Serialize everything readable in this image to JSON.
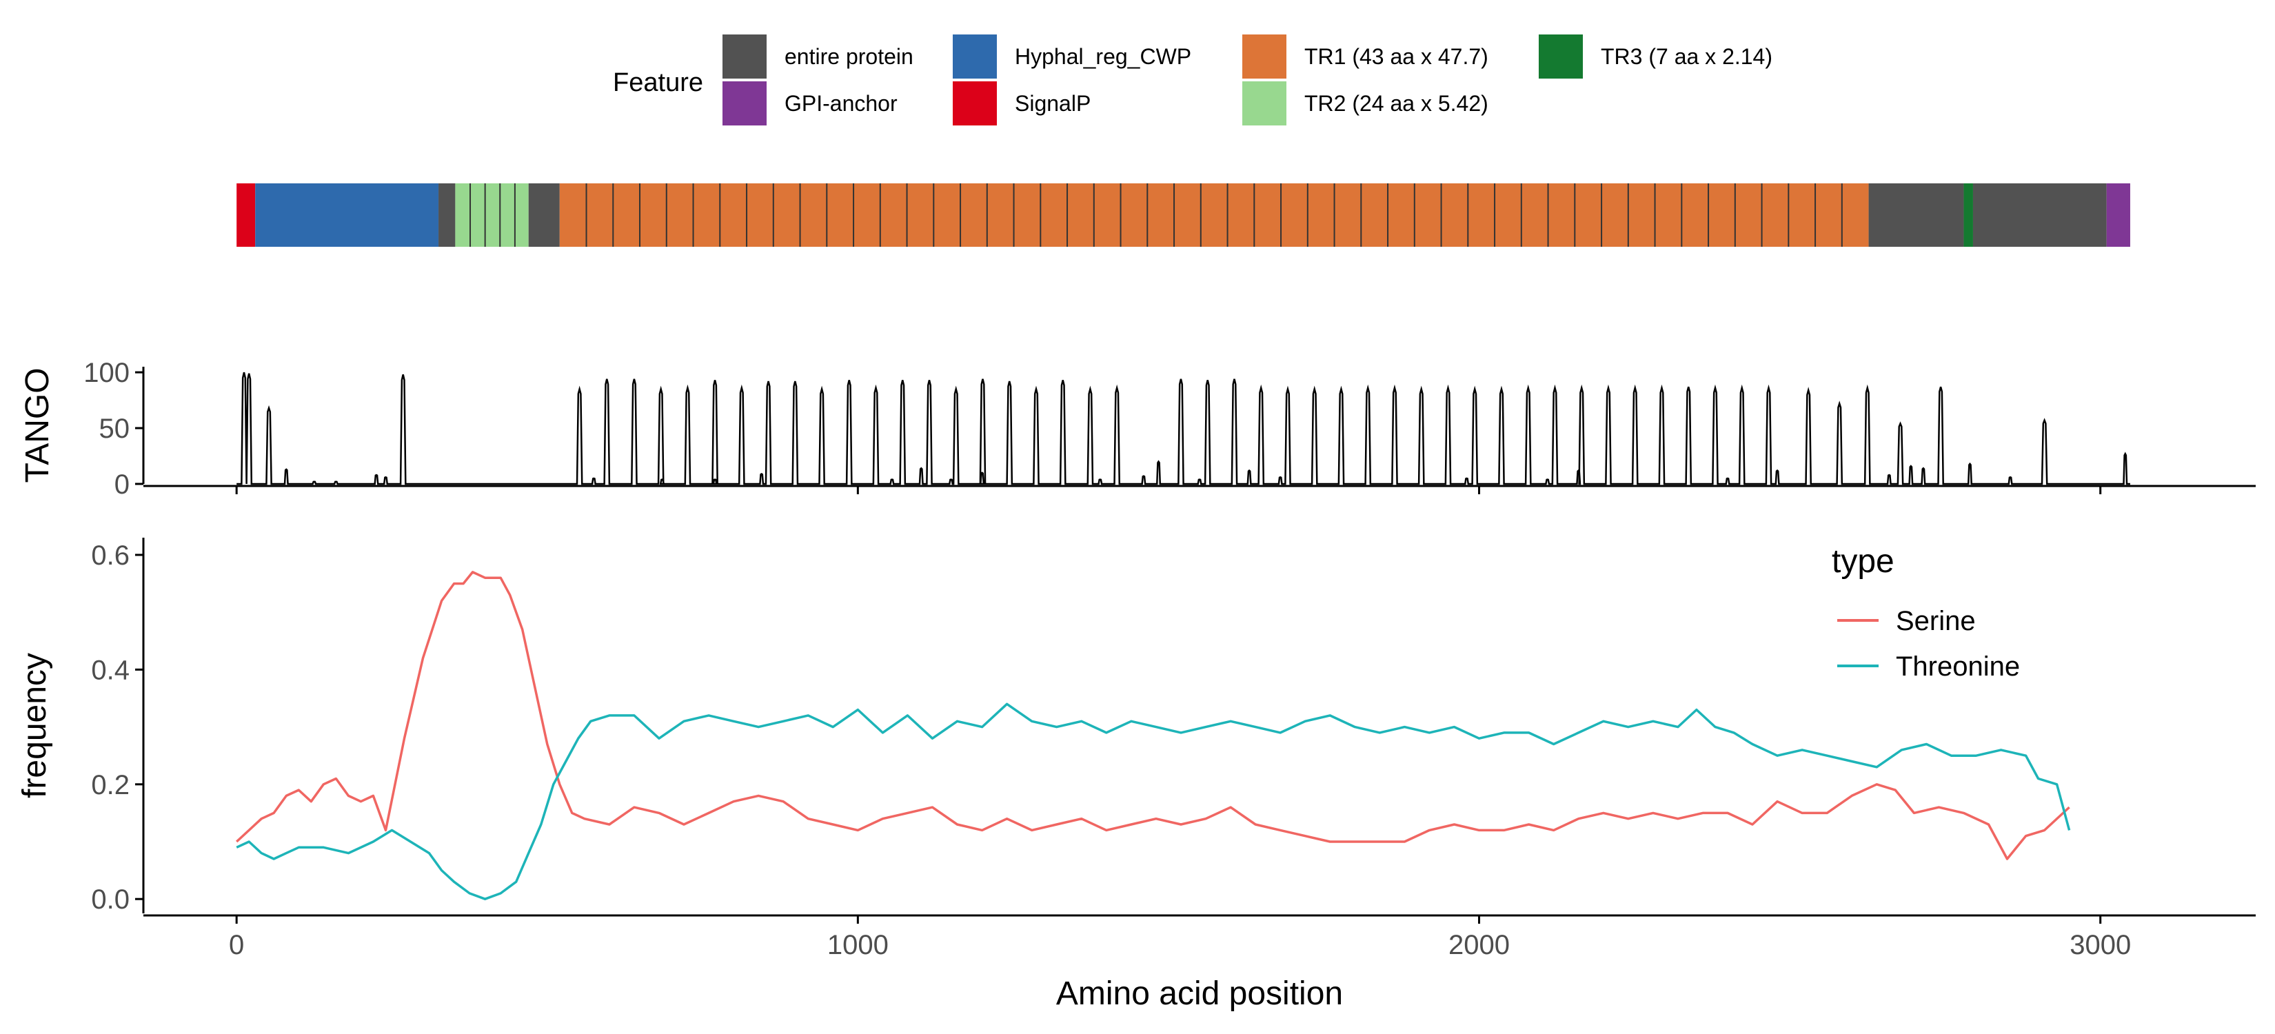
{
  "legend": {
    "title": "Feature",
    "items": [
      {
        "label": "entire protein",
        "color": "#525252"
      },
      {
        "label": "GPI-anchor",
        "color": "#7f3795"
      },
      {
        "label": "Hyphal_reg_CWP",
        "color": "#2e6aad"
      },
      {
        "label": "SignalP",
        "color": "#dc0119"
      },
      {
        "label": "TR1 (43 aa x 47.7)",
        "color": "#dd7537"
      },
      {
        "label": "TR2 (24 aa x 5.42)",
        "color": "#98d88f"
      },
      {
        "label": "TR3 (7 aa x 2.14)",
        "color": "#147a30"
      }
    ]
  },
  "chart_data": [
    {
      "type": "bar",
      "panel": "feature-track",
      "xlim": [
        -150,
        3250
      ],
      "segments": [
        {
          "feature": "SignalP",
          "start": 0,
          "end": 30
        },
        {
          "feature": "Hyphal_reg_CWP",
          "start": 30,
          "end": 325
        },
        {
          "feature": "entire protein",
          "start": 325,
          "end": 352
        },
        {
          "feature": "TR2 (24 aa x 5.42)",
          "start": 352,
          "end": 470,
          "repeat_len": 24
        },
        {
          "feature": "entire protein",
          "start": 470,
          "end": 520
        },
        {
          "feature": "TR1 (43 aa x 47.7)",
          "start": 520,
          "end": 2627,
          "repeat_len": 43
        },
        {
          "feature": "entire protein",
          "start": 2627,
          "end": 2780
        },
        {
          "feature": "TR3 (7 aa x 2.14)",
          "start": 2780,
          "end": 2795
        },
        {
          "feature": "entire protein",
          "start": 2795,
          "end": 3010
        },
        {
          "feature": "GPI-anchor",
          "start": 3010,
          "end": 3048
        }
      ]
    },
    {
      "type": "line",
      "panel": "tango",
      "ylabel": "TANGO",
      "ylim": [
        0,
        105
      ],
      "yticks": [
        0,
        50,
        100
      ],
      "xlim": [
        -150,
        3250
      ],
      "xticks": [
        0,
        1000,
        2000,
        3000
      ],
      "peaks": [
        [
          12,
          100
        ],
        [
          20,
          99
        ],
        [
          52,
          68
        ],
        [
          80,
          13
        ],
        [
          125,
          2
        ],
        [
          160,
          2
        ],
        [
          225,
          8
        ],
        [
          240,
          6
        ],
        [
          268,
          98
        ],
        [
          552,
          85
        ],
        [
          575,
          5
        ],
        [
          596,
          94
        ],
        [
          640,
          94
        ],
        [
          685,
          4
        ],
        [
          683,
          85
        ],
        [
          726,
          86
        ],
        [
          770,
          4
        ],
        [
          770,
          93
        ],
        [
          813,
          86
        ],
        [
          845,
          9
        ],
        [
          856,
          92
        ],
        [
          899,
          92
        ],
        [
          942,
          85
        ],
        [
          986,
          93
        ],
        [
          1029,
          86
        ],
        [
          1055,
          4
        ],
        [
          1072,
          93
        ],
        [
          1102,
          14
        ],
        [
          1115,
          93
        ],
        [
          1150,
          4
        ],
        [
          1158,
          85
        ],
        [
          1200,
          10
        ],
        [
          1201,
          94
        ],
        [
          1244,
          92
        ],
        [
          1287,
          85
        ],
        [
          1330,
          93
        ],
        [
          1374,
          85
        ],
        [
          1390,
          4
        ],
        [
          1417,
          86
        ],
        [
          1460,
          7
        ],
        [
          1484,
          20
        ],
        [
          1520,
          94
        ],
        [
          1550,
          4
        ],
        [
          1563,
          93
        ],
        [
          1606,
          94
        ],
        [
          1630,
          12
        ],
        [
          1649,
          86
        ],
        [
          1680,
          6
        ],
        [
          1692,
          85
        ],
        [
          1735,
          85
        ],
        [
          1778,
          85
        ],
        [
          1821,
          86
        ],
        [
          1864,
          86
        ],
        [
          1907,
          85
        ],
        [
          1950,
          86
        ],
        [
          1980,
          5
        ],
        [
          1993,
          85
        ],
        [
          2036,
          85
        ],
        [
          2079,
          86
        ],
        [
          2110,
          4
        ],
        [
          2122,
          86
        ],
        [
          2160,
          12
        ],
        [
          2165,
          86
        ],
        [
          2208,
          86
        ],
        [
          2251,
          86
        ],
        [
          2294,
          86
        ],
        [
          2337,
          87
        ],
        [
          2380,
          86
        ],
        [
          2400,
          5
        ],
        [
          2423,
          86
        ],
        [
          2466,
          86
        ],
        [
          2480,
          12
        ],
        [
          2530,
          84
        ],
        [
          2580,
          72
        ],
        [
          2625,
          86
        ],
        [
          2660,
          8
        ],
        [
          2678,
          54
        ],
        [
          2695,
          16
        ],
        [
          2715,
          14
        ],
        [
          2743,
          87
        ],
        [
          2790,
          18
        ],
        [
          2855,
          6
        ],
        [
          2910,
          57
        ],
        [
          3040,
          27
        ]
      ]
    },
    {
      "type": "line",
      "panel": "composition",
      "title": "",
      "xlabel": "Amino acid position",
      "ylabel": "frequency",
      "xlim": [
        -150,
        3250
      ],
      "ylim": [
        -0.025,
        0.63
      ],
      "xticks": [
        0,
        1000,
        2000,
        3000
      ],
      "yticks": [
        0.0,
        0.2,
        0.4,
        0.6
      ],
      "legend_title": "type",
      "legend_position": "top-right",
      "series": [
        {
          "name": "Serine",
          "color": "#f06662",
          "points": [
            [
              0,
              0.1
            ],
            [
              20,
              0.12
            ],
            [
              40,
              0.14
            ],
            [
              60,
              0.15
            ],
            [
              80,
              0.18
            ],
            [
              100,
              0.19
            ],
            [
              120,
              0.17
            ],
            [
              140,
              0.2
            ],
            [
              160,
              0.21
            ],
            [
              180,
              0.18
            ],
            [
              200,
              0.17
            ],
            [
              220,
              0.18
            ],
            [
              240,
              0.12
            ],
            [
              270,
              0.28
            ],
            [
              300,
              0.42
            ],
            [
              330,
              0.52
            ],
            [
              350,
              0.55
            ],
            [
              365,
              0.55
            ],
            [
              380,
              0.57
            ],
            [
              400,
              0.56
            ],
            [
              425,
              0.56
            ],
            [
              440,
              0.53
            ],
            [
              460,
              0.47
            ],
            [
              480,
              0.37
            ],
            [
              500,
              0.27
            ],
            [
              520,
              0.2
            ],
            [
              540,
              0.15
            ],
            [
              560,
              0.14
            ],
            [
              600,
              0.13
            ],
            [
              640,
              0.16
            ],
            [
              680,
              0.15
            ],
            [
              720,
              0.13
            ],
            [
              760,
              0.15
            ],
            [
              800,
              0.17
            ],
            [
              840,
              0.18
            ],
            [
              880,
              0.17
            ],
            [
              920,
              0.14
            ],
            [
              960,
              0.13
            ],
            [
              1000,
              0.12
            ],
            [
              1040,
              0.14
            ],
            [
              1080,
              0.15
            ],
            [
              1120,
              0.16
            ],
            [
              1160,
              0.13
            ],
            [
              1200,
              0.12
            ],
            [
              1240,
              0.14
            ],
            [
              1280,
              0.12
            ],
            [
              1320,
              0.13
            ],
            [
              1360,
              0.14
            ],
            [
              1400,
              0.12
            ],
            [
              1440,
              0.13
            ],
            [
              1480,
              0.14
            ],
            [
              1520,
              0.13
            ],
            [
              1560,
              0.14
            ],
            [
              1600,
              0.16
            ],
            [
              1640,
              0.13
            ],
            [
              1680,
              0.12
            ],
            [
              1720,
              0.11
            ],
            [
              1760,
              0.1
            ],
            [
              1800,
              0.1
            ],
            [
              1840,
              0.1
            ],
            [
              1880,
              0.1
            ],
            [
              1920,
              0.12
            ],
            [
              1960,
              0.13
            ],
            [
              2000,
              0.12
            ],
            [
              2040,
              0.12
            ],
            [
              2080,
              0.13
            ],
            [
              2120,
              0.12
            ],
            [
              2160,
              0.14
            ],
            [
              2200,
              0.15
            ],
            [
              2240,
              0.14
            ],
            [
              2280,
              0.15
            ],
            [
              2320,
              0.14
            ],
            [
              2360,
              0.15
            ],
            [
              2400,
              0.15
            ],
            [
              2440,
              0.13
            ],
            [
              2480,
              0.17
            ],
            [
              2520,
              0.15
            ],
            [
              2560,
              0.15
            ],
            [
              2600,
              0.18
            ],
            [
              2640,
              0.2
            ],
            [
              2670,
              0.19
            ],
            [
              2700,
              0.15
            ],
            [
              2740,
              0.16
            ],
            [
              2780,
              0.15
            ],
            [
              2820,
              0.13
            ],
            [
              2850,
              0.07
            ],
            [
              2880,
              0.11
            ],
            [
              2910,
              0.12
            ],
            [
              2950,
              0.16
            ]
          ]
        },
        {
          "name": "Threonine",
          "color": "#1db4b8",
          "points": [
            [
              0,
              0.09
            ],
            [
              20,
              0.1
            ],
            [
              40,
              0.08
            ],
            [
              60,
              0.07
            ],
            [
              80,
              0.08
            ],
            [
              100,
              0.09
            ],
            [
              140,
              0.09
            ],
            [
              180,
              0.08
            ],
            [
              220,
              0.1
            ],
            [
              250,
              0.12
            ],
            [
              280,
              0.1
            ],
            [
              310,
              0.08
            ],
            [
              330,
              0.05
            ],
            [
              350,
              0.03
            ],
            [
              375,
              0.01
            ],
            [
              400,
              0.0
            ],
            [
              425,
              0.01
            ],
            [
              450,
              0.03
            ],
            [
              470,
              0.08
            ],
            [
              490,
              0.13
            ],
            [
              510,
              0.2
            ],
            [
              530,
              0.24
            ],
            [
              550,
              0.28
            ],
            [
              570,
              0.31
            ],
            [
              600,
              0.32
            ],
            [
              640,
              0.32
            ],
            [
              680,
              0.28
            ],
            [
              720,
              0.31
            ],
            [
              760,
              0.32
            ],
            [
              800,
              0.31
            ],
            [
              840,
              0.3
            ],
            [
              880,
              0.31
            ],
            [
              920,
              0.32
            ],
            [
              960,
              0.3
            ],
            [
              1000,
              0.33
            ],
            [
              1040,
              0.29
            ],
            [
              1080,
              0.32
            ],
            [
              1120,
              0.28
            ],
            [
              1160,
              0.31
            ],
            [
              1200,
              0.3
            ],
            [
              1240,
              0.34
            ],
            [
              1280,
              0.31
            ],
            [
              1320,
              0.3
            ],
            [
              1360,
              0.31
            ],
            [
              1400,
              0.29
            ],
            [
              1440,
              0.31
            ],
            [
              1480,
              0.3
            ],
            [
              1520,
              0.29
            ],
            [
              1560,
              0.3
            ],
            [
              1600,
              0.31
            ],
            [
              1640,
              0.3
            ],
            [
              1680,
              0.29
            ],
            [
              1720,
              0.31
            ],
            [
              1760,
              0.32
            ],
            [
              1800,
              0.3
            ],
            [
              1840,
              0.29
            ],
            [
              1880,
              0.3
            ],
            [
              1920,
              0.29
            ],
            [
              1960,
              0.3
            ],
            [
              2000,
              0.28
            ],
            [
              2040,
              0.29
            ],
            [
              2080,
              0.29
            ],
            [
              2120,
              0.27
            ],
            [
              2160,
              0.29
            ],
            [
              2200,
              0.31
            ],
            [
              2240,
              0.3
            ],
            [
              2280,
              0.31
            ],
            [
              2320,
              0.3
            ],
            [
              2350,
              0.33
            ],
            [
              2380,
              0.3
            ],
            [
              2410,
              0.29
            ],
            [
              2440,
              0.27
            ],
            [
              2480,
              0.25
            ],
            [
              2520,
              0.26
            ],
            [
              2560,
              0.25
            ],
            [
              2600,
              0.24
            ],
            [
              2640,
              0.23
            ],
            [
              2680,
              0.26
            ],
            [
              2720,
              0.27
            ],
            [
              2760,
              0.25
            ],
            [
              2800,
              0.25
            ],
            [
              2840,
              0.26
            ],
            [
              2880,
              0.25
            ],
            [
              2900,
              0.21
            ],
            [
              2930,
              0.2
            ],
            [
              2950,
              0.12
            ]
          ]
        }
      ]
    }
  ]
}
